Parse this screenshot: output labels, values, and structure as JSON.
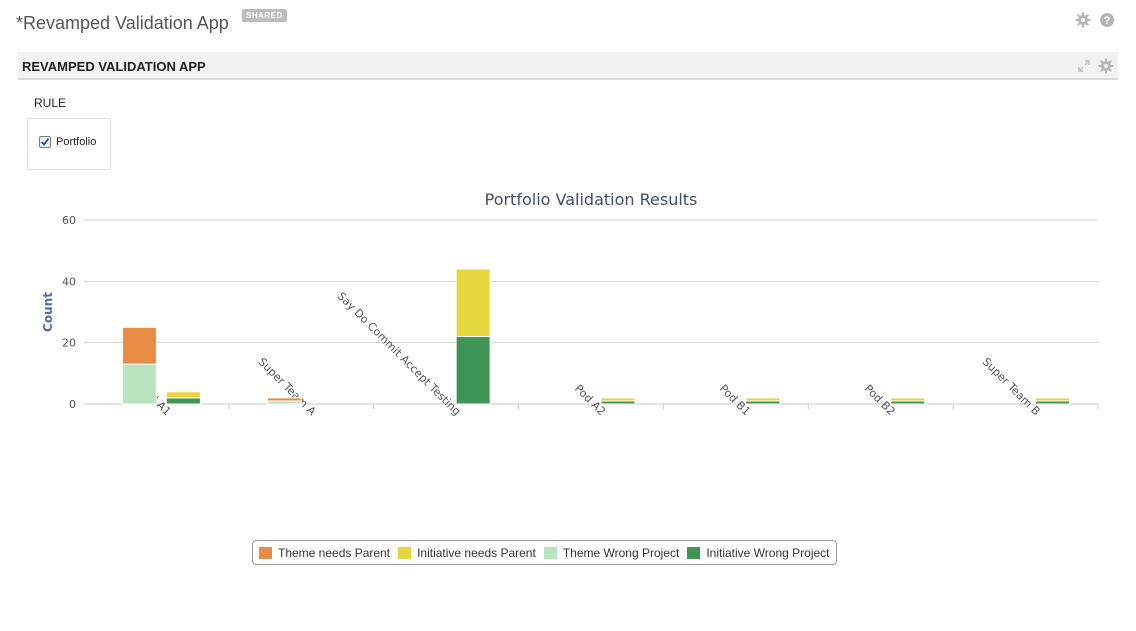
{
  "app": {
    "title": "*Revamped Validation App",
    "badge": "SHARED",
    "icons": [
      "gear-icon",
      "help-icon"
    ]
  },
  "panel": {
    "title": "REVAMPED VALIDATION APP",
    "icons": [
      "expand-icon",
      "gear-icon"
    ]
  },
  "rule": {
    "label": "RULE",
    "option_label": "Portfolio",
    "option_checked": true
  },
  "chart_data": {
    "type": "bar",
    "title": "Portfolio Validation Results",
    "ylabel": "Count",
    "xlabel": "",
    "ylim": [
      0,
      60
    ],
    "yticks": [
      0,
      20,
      40,
      60
    ],
    "grid": true,
    "legend_placement": "bottom",
    "categories": [
      "Pod A1",
      "Super Team A",
      "Say Do Commit Accept Testing",
      "Pod A2",
      "Pod B1",
      "Pod B2",
      "Super Team B"
    ],
    "stacks": [
      {
        "stack": "theme",
        "series": [
          {
            "name": "Theme Wrong Project",
            "color": "#b7e4bc",
            "values": [
              13,
              1,
              0,
              0,
              0,
              0,
              0
            ]
          },
          {
            "name": "Theme needs Parent",
            "color": "#e88b45",
            "values": [
              12,
              1,
              0,
              0,
              0,
              0,
              0
            ]
          }
        ]
      },
      {
        "stack": "initiative",
        "series": [
          {
            "name": "Initiative Wrong Project",
            "color": "#3f9556",
            "values": [
              2,
              0,
              22,
              1,
              1,
              1,
              1
            ]
          },
          {
            "name": "Initiative needs Parent",
            "color": "#e6d63e",
            "values": [
              2,
              0,
              22,
              1,
              1,
              1,
              1
            ]
          }
        ]
      }
    ],
    "legend": [
      {
        "name": "Theme needs Parent",
        "color": "#e88b45"
      },
      {
        "name": "Initiative needs Parent",
        "color": "#e6d63e"
      },
      {
        "name": "Theme Wrong Project",
        "color": "#b7e4bc"
      },
      {
        "name": "Initiative Wrong Project",
        "color": "#3f9556"
      }
    ],
    "colors": {
      "title": "#3b4f6b",
      "ylabel": "#4a6fa5",
      "grid": "#d0d0d0",
      "axis_text": "#555555"
    }
  }
}
